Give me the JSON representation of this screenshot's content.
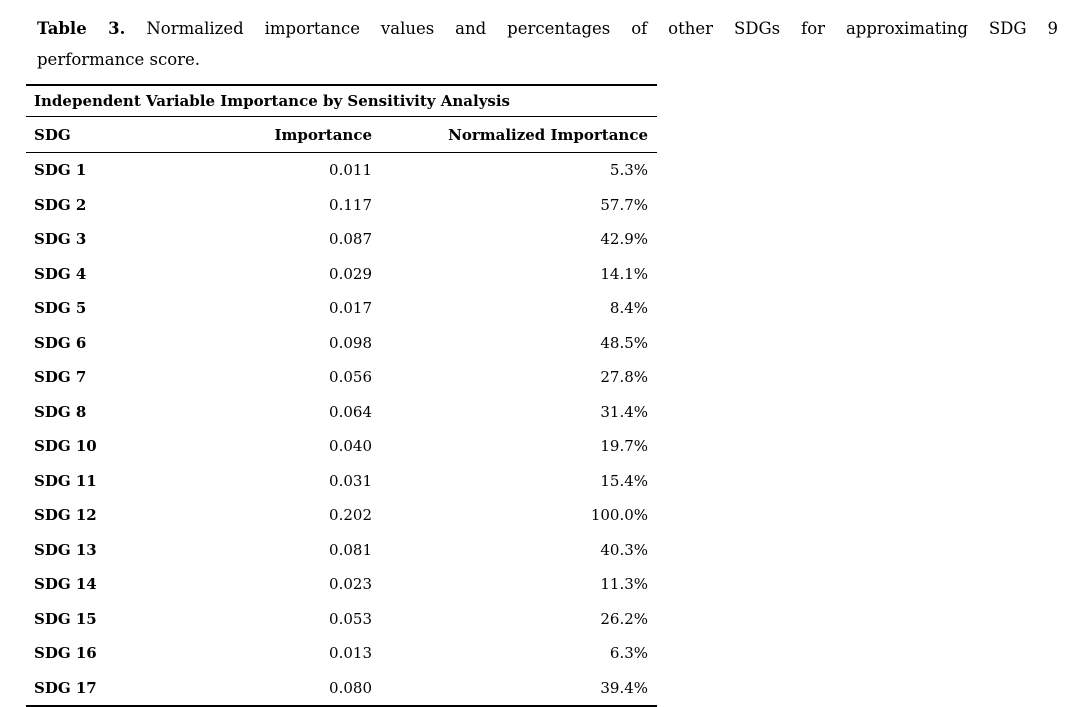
{
  "caption": {
    "label": "Table 3.",
    "text_line1": "Normalized importance values and percentages of other SDGs for approximating SDG 9",
    "text_line2": "performance score."
  },
  "table": {
    "section_header": "Independent Variable Importance by Sensitivity Analysis",
    "columns": [
      "SDG",
      "Importance",
      "Normalized Importance"
    ],
    "rows": [
      {
        "sdg": "SDG 1",
        "importance": "0.011",
        "normalized": "5.3%"
      },
      {
        "sdg": "SDG 2",
        "importance": "0.117",
        "normalized": "57.7%"
      },
      {
        "sdg": "SDG 3",
        "importance": "0.087",
        "normalized": "42.9%"
      },
      {
        "sdg": "SDG 4",
        "importance": "0.029",
        "normalized": "14.1%"
      },
      {
        "sdg": "SDG 5",
        "importance": "0.017",
        "normalized": "8.4%"
      },
      {
        "sdg": "SDG 6",
        "importance": "0.098",
        "normalized": "48.5%"
      },
      {
        "sdg": "SDG 7",
        "importance": "0.056",
        "normalized": "27.8%"
      },
      {
        "sdg": "SDG 8",
        "importance": "0.064",
        "normalized": "31.4%"
      },
      {
        "sdg": "SDG 10",
        "importance": "0.040",
        "normalized": "19.7%"
      },
      {
        "sdg": "SDG 11",
        "importance": "0.031",
        "normalized": "15.4%"
      },
      {
        "sdg": "SDG 12",
        "importance": "0.202",
        "normalized": "100.0%"
      },
      {
        "sdg": "SDG 13",
        "importance": "0.081",
        "normalized": "40.3%"
      },
      {
        "sdg": "SDG 14",
        "importance": "0.023",
        "normalized": "11.3%"
      },
      {
        "sdg": "SDG 15",
        "importance": "0.053",
        "normalized": "26.2%"
      },
      {
        "sdg": "SDG 16",
        "importance": "0.013",
        "normalized": "6.3%"
      },
      {
        "sdg": "SDG 17",
        "importance": "0.080",
        "normalized": "39.4%"
      }
    ]
  },
  "colors": {
    "text": "#000000",
    "background": "#ffffff",
    "rule": "#000000"
  },
  "chart_data": {
    "type": "table",
    "title": "Table 3. Normalized importance values and percentages of other SDGs for approximating SDG 9 performance score.",
    "section_header": "Independent Variable Importance by Sensitivity Analysis",
    "columns": [
      "SDG",
      "Importance",
      "Normalized Importance"
    ],
    "categories": [
      "SDG 1",
      "SDG 2",
      "SDG 3",
      "SDG 4",
      "SDG 5",
      "SDG 6",
      "SDG 7",
      "SDG 8",
      "SDG 10",
      "SDG 11",
      "SDG 12",
      "SDG 13",
      "SDG 14",
      "SDG 15",
      "SDG 16",
      "SDG 17"
    ],
    "series": [
      {
        "name": "Importance",
        "values": [
          0.011,
          0.117,
          0.087,
          0.029,
          0.017,
          0.098,
          0.056,
          0.064,
          0.04,
          0.031,
          0.202,
          0.081,
          0.023,
          0.053,
          0.013,
          0.08
        ]
      },
      {
        "name": "Normalized Importance (%)",
        "values": [
          5.3,
          57.7,
          42.9,
          14.1,
          8.4,
          48.5,
          27.8,
          31.4,
          19.7,
          15.4,
          100.0,
          40.3,
          11.3,
          26.2,
          6.3,
          39.4
        ]
      }
    ]
  }
}
